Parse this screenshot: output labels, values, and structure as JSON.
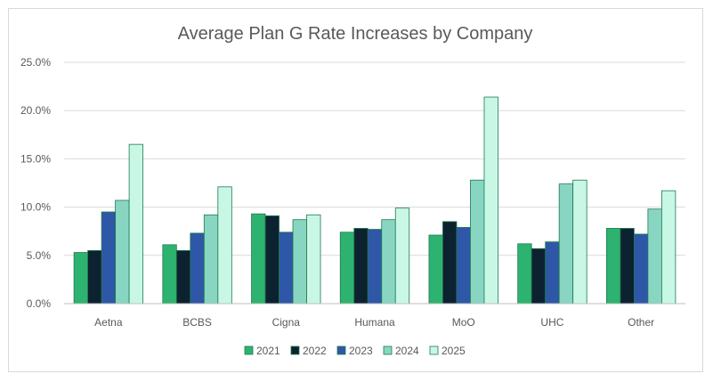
{
  "chart_data": {
    "type": "bar",
    "title": "Average Plan G Rate Increases by Company",
    "xlabel": "",
    "ylabel": "",
    "categories": [
      "Aetna",
      "BCBS",
      "Cigna",
      "Humana",
      "MoO",
      "UHC",
      "Other"
    ],
    "ylim": [
      0,
      25
    ],
    "yticks": [
      "0.0%",
      "5.0%",
      "10.0%",
      "15.0%",
      "20.0%",
      "25.0%"
    ],
    "grid": true,
    "legend_position": "bottom",
    "series": [
      {
        "name": "2021",
        "color": "#2db36f",
        "values": [
          5.3,
          6.1,
          9.3,
          7.4,
          7.1,
          6.2,
          7.8
        ]
      },
      {
        "name": "2022",
        "color": "#0d2230",
        "values": [
          5.5,
          5.5,
          9.1,
          7.8,
          8.5,
          5.7,
          7.8
        ]
      },
      {
        "name": "2023",
        "color": "#2f57a8",
        "values": [
          9.5,
          7.3,
          7.4,
          7.7,
          7.9,
          6.4,
          7.2
        ]
      },
      {
        "name": "2024",
        "color": "#88d6c2",
        "values": [
          10.7,
          9.2,
          8.7,
          8.7,
          12.8,
          12.4,
          9.8
        ]
      },
      {
        "name": "2025",
        "color": "#c8f7e6",
        "values": [
          16.5,
          12.1,
          9.2,
          9.9,
          21.4,
          12.8,
          11.7
        ]
      }
    ]
  }
}
